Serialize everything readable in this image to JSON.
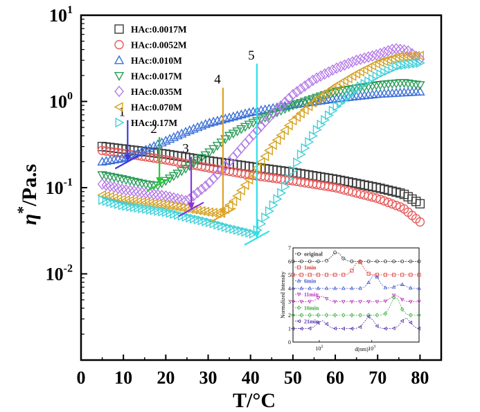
{
  "chart_data": {
    "type": "scatter",
    "xlabel": "T/°C",
    "ylabel_main": "η",
    "ylabel_sup": "*",
    "ylabel_unit": "/Pa.s",
    "x_scale": "linear",
    "y_scale": "log",
    "xlim": [
      0,
      85
    ],
    "ylim_log10": [
      -3,
      1
    ],
    "xticks": [
      0,
      10,
      20,
      30,
      40,
      50,
      60,
      70,
      80
    ],
    "ytick_labels": [
      {
        "base": "10",
        "exp": "1",
        "log": 1
      },
      {
        "base": "10",
        "exp": "0",
        "log": 0
      },
      {
        "base": "10",
        "exp": "-1",
        "log": -1
      },
      {
        "base": "10",
        "exp": "-2",
        "log": -2
      }
    ],
    "legend_position": "top-left",
    "series": [
      {
        "name": "HAc:0.0017M",
        "marker": "square",
        "color": "#3a3a3a",
        "points": [
          [
            5,
            0.3
          ],
          [
            10,
            0.28
          ],
          [
            20,
            0.245
          ],
          [
            30,
            0.205
          ],
          [
            40,
            0.175
          ],
          [
            50,
            0.15
          ],
          [
            60,
            0.125
          ],
          [
            70,
            0.1
          ],
          [
            76,
            0.085
          ],
          [
            80,
            0.065
          ]
        ]
      },
      {
        "name": "HAc:0.0052M",
        "marker": "circle",
        "color": "#e85a5a",
        "points": [
          [
            5,
            0.27
          ],
          [
            10,
            0.25
          ],
          [
            20,
            0.21
          ],
          [
            30,
            0.17
          ],
          [
            40,
            0.14
          ],
          [
            50,
            0.12
          ],
          [
            60,
            0.1
          ],
          [
            70,
            0.075
          ],
          [
            76,
            0.058
          ],
          [
            80,
            0.04
          ]
        ]
      },
      {
        "name": "HAc:0.010M",
        "marker": "triangle-up",
        "color": "#3a6fd8",
        "points": [
          [
            5,
            0.2
          ],
          [
            10,
            0.22
          ],
          [
            15,
            0.27
          ],
          [
            20,
            0.35
          ],
          [
            25,
            0.45
          ],
          [
            30,
            0.56
          ],
          [
            40,
            0.75
          ],
          [
            50,
            0.92
          ],
          [
            60,
            1.08
          ],
          [
            70,
            1.22
          ],
          [
            80,
            1.3
          ]
        ]
      },
      {
        "name": "HAc:0.017M",
        "marker": "triangle-down",
        "color": "#2d9c5a",
        "points": [
          [
            5,
            0.14
          ],
          [
            10,
            0.125
          ],
          [
            15,
            0.11
          ],
          [
            18,
            0.105
          ],
          [
            20,
            0.12
          ],
          [
            25,
            0.17
          ],
          [
            30,
            0.25
          ],
          [
            35,
            0.4
          ],
          [
            40,
            0.55
          ],
          [
            50,
            0.9
          ],
          [
            60,
            1.3
          ],
          [
            70,
            1.55
          ],
          [
            76,
            1.65
          ],
          [
            80,
            1.55
          ]
        ]
      },
      {
        "name": "HAc:0.035M",
        "marker": "diamond",
        "color": "#b57be8",
        "points": [
          [
            5,
            0.11
          ],
          [
            10,
            0.095
          ],
          [
            20,
            0.08
          ],
          [
            25,
            0.07
          ],
          [
            30,
            0.11
          ],
          [
            35,
            0.2
          ],
          [
            40,
            0.38
          ],
          [
            45,
            0.7
          ],
          [
            50,
            1.2
          ],
          [
            55,
            1.8
          ],
          [
            60,
            2.4
          ],
          [
            65,
            3.0
          ],
          [
            70,
            3.5
          ],
          [
            74,
            4.1
          ],
          [
            77,
            3.9
          ],
          [
            80,
            3.1
          ]
        ]
      },
      {
        "name": "HAc:0.070M",
        "marker": "triangle-left",
        "color": "#d4a020",
        "points": [
          [
            5,
            0.082
          ],
          [
            10,
            0.072
          ],
          [
            20,
            0.063
          ],
          [
            30,
            0.052
          ],
          [
            33,
            0.05
          ],
          [
            36,
            0.07
          ],
          [
            40,
            0.13
          ],
          [
            45,
            0.3
          ],
          [
            50,
            0.6
          ],
          [
            55,
            1.0
          ],
          [
            60,
            1.5
          ],
          [
            65,
            2.1
          ],
          [
            70,
            2.8
          ],
          [
            75,
            3.3
          ],
          [
            80,
            3.4
          ]
        ]
      },
      {
        "name": "HAc:0.17M",
        "marker": "triangle-right",
        "color": "#3fd0d8",
        "points": [
          [
            5,
            0.072
          ],
          [
            10,
            0.062
          ],
          [
            20,
            0.052
          ],
          [
            30,
            0.04
          ],
          [
            35,
            0.034
          ],
          [
            41,
            0.029
          ],
          [
            44,
            0.05
          ],
          [
            48,
            0.1
          ],
          [
            52,
            0.25
          ],
          [
            56,
            0.5
          ],
          [
            60,
            0.85
          ],
          [
            65,
            1.4
          ],
          [
            70,
            2.0
          ],
          [
            75,
            2.6
          ],
          [
            80,
            2.8
          ]
        ]
      }
    ],
    "annotations": [
      {
        "label": "1",
        "x": 11,
        "y": 0.2,
        "color": "#3a3ae0"
      },
      {
        "label": "2",
        "x": 18.5,
        "y": 0.11,
        "color": "#22cc33"
      },
      {
        "label": "3",
        "x": 26,
        "y": 0.056,
        "color": "#8833dd"
      },
      {
        "label": "4",
        "x": 33.5,
        "y": 0.048,
        "color": "#e0a020"
      },
      {
        "label": "5",
        "x": 41.5,
        "y": 0.026,
        "color": "#2ee0e8"
      }
    ],
    "inset": {
      "type": "line",
      "xlabel": "d(nm)",
      "ylabel": "Normalized Intensity",
      "x_scale": "log",
      "xlim_log10": [
        1.5,
        3.9
      ],
      "ylim": [
        0,
        7
      ],
      "yticks": [
        0,
        1,
        2,
        3,
        4,
        5,
        6,
        7
      ],
      "xtick_labels": [
        {
          "base": "10",
          "exp": "2",
          "log": 2
        },
        {
          "base": "10",
          "exp": "3",
          "log": 3
        }
      ],
      "series": [
        {
          "name": "original",
          "marker": "circle",
          "color": "#333333",
          "baseline": 6,
          "peaks": [
            {
              "logx": 2.33,
              "height": 0.7
            }
          ]
        },
        {
          "name": "1min",
          "marker": "square",
          "color": "#dd3333",
          "baseline": 5,
          "peaks": [
            {
              "logx": 2.75,
              "height": 1.0
            }
          ]
        },
        {
          "name": "6min",
          "marker": "triangle-up",
          "color": "#4455cc",
          "baseline": 4,
          "peaks": [
            {
              "logx": 3.05,
              "height": 1.0
            },
            {
              "logx": 3.55,
              "height": 0.3
            }
          ]
        },
        {
          "name": "11min",
          "marker": "triangle-down",
          "color": "#bb33bb",
          "baseline": 3,
          "peaks": [
            {
              "logx": 2.05,
              "height": 0.4
            },
            {
              "logx": 3.45,
              "height": 0.5
            }
          ]
        },
        {
          "name": "16min",
          "marker": "diamond",
          "color": "#33aa33",
          "baseline": 2,
          "peaks": [
            {
              "logx": 3.45,
              "height": 1.4
            }
          ]
        },
        {
          "name": "21min",
          "marker": "triangle-left",
          "color": "#5533aa",
          "baseline": 1,
          "peaks": [
            {
              "logx": 2.05,
              "height": 0.6
            },
            {
              "logx": 2.95,
              "height": 0.9
            },
            {
              "logx": 3.65,
              "height": 0.8
            }
          ]
        }
      ]
    }
  }
}
